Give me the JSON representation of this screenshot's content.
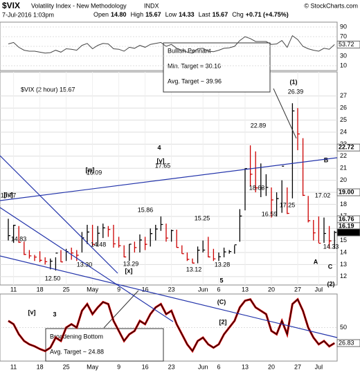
{
  "header": {
    "symbol": "$VIX",
    "name": "Volatility Index - New Methodology",
    "exchange": "INDX",
    "copyright": "© StockCharts.com",
    "datetime": "7-Jul-2016 1:03pm",
    "quote": [
      {
        "label": "Open",
        "value": "14.80"
      },
      {
        "label": "High",
        "value": "15.67"
      },
      {
        "label": "Low",
        "value": "14.33"
      },
      {
        "label": "Last",
        "value": "15.67"
      },
      {
        "label": "Chg",
        "value": "+0.71 (+4.75%)"
      }
    ]
  },
  "chart_data": [
    {
      "type": "ohlc",
      "legend": "$VIX (2 hour) 15.67",
      "categories": [
        null,
        "11",
        null,
        null,
        null,
        null,
        "18",
        null,
        null,
        null,
        null,
        "25",
        null,
        null,
        null,
        null,
        "May",
        null,
        null,
        null,
        null,
        "9",
        null,
        null,
        null,
        null,
        "16",
        null,
        null,
        null,
        null,
        "23",
        null,
        null,
        null,
        null,
        null,
        "Jun",
        null,
        null,
        "6",
        null,
        null,
        null,
        null,
        "13",
        null,
        null,
        null,
        null,
        "20",
        null,
        null,
        null,
        null,
        "27",
        null,
        null,
        null,
        "Jul",
        null,
        null,
        null
      ],
      "series": [
        {
          "name": "$VIX",
          "color": "#000000",
          "down_color": "#cc0000",
          "high": [
            16.8,
            16.3,
            16.2,
            14.9,
            14.2,
            13.8,
            14.1,
            13.6,
            13.5,
            13.6,
            14.2,
            14.3,
            14.4,
            14.2,
            15.7,
            16.3,
            16.3,
            16.2,
            16.4,
            16.2,
            16.3,
            15.3,
            14.6,
            14.7,
            14.9,
            15.5,
            15.3,
            16.0,
            16.3,
            17.0,
            16.4,
            15.9,
            15.9,
            14.6,
            14.0,
            13.5,
            14.5,
            15.0,
            15.3,
            14.3,
            14.0,
            14.4,
            14.2,
            14.6,
            17.6,
            21.0,
            22.9,
            22.4,
            21.4,
            20.5,
            19.4,
            19.0,
            20.0,
            19.4,
            26.4,
            26.0,
            23.5,
            18.7,
            16.7,
            17.0,
            16.9,
            16.2,
            15.8
          ],
          "low": [
            15.0,
            14.8,
            14.8,
            13.8,
            13.5,
            13.3,
            13.2,
            13.0,
            12.6,
            12.5,
            13.2,
            13.3,
            13.4,
            13.3,
            14.0,
            14.7,
            14.5,
            14.5,
            15.2,
            15.3,
            14.4,
            14.4,
            13.6,
            13.3,
            14.0,
            14.0,
            14.2,
            14.5,
            15.0,
            15.8,
            14.9,
            14.9,
            14.4,
            13.9,
            13.3,
            13.1,
            13.1,
            14.0,
            13.6,
            13.3,
            13.3,
            13.6,
            13.9,
            13.9,
            14.9,
            17.5,
            19.5,
            19.0,
            18.6,
            18.7,
            16.9,
            17.0,
            17.3,
            17.2,
            18.5,
            22.5,
            18.7,
            16.5,
            15.0,
            14.8,
            14.8,
            14.3,
            14.3
          ],
          "close": [
            15.4,
            16.26,
            14.85,
            13.84,
            13.72,
            13.62,
            13.35,
            13.24,
            13.28,
            13.95,
            13.22,
            14.08,
            13.96,
            13.77,
            15.22,
            15.7,
            14.68,
            15.6,
            16.05,
            15.91,
            14.72,
            14.57,
            13.63,
            14.69,
            14.41,
            15.04,
            14.68,
            15.57,
            15.95,
            16.33,
            15.2,
            15.82,
            14.42,
            13.9,
            13.43,
            13.12,
            14.19,
            14.2,
            13.63,
            13.47,
            13.65,
            14.05,
            14.08,
            14.64,
            17.03,
            20.97,
            20.5,
            19.37,
            19.37,
            19.41,
            18.37,
            18.48,
            21.17,
            17.25,
            25.76,
            23.85,
            18.75,
            16.64,
            15.63,
            14.77,
            15.58,
            14.96,
            15.67
          ]
        }
      ],
      "ylim": [
        11.3,
        29.0
      ],
      "yticks": [
        12,
        13,
        14,
        15,
        16,
        17,
        18,
        19,
        20,
        21,
        22,
        23,
        24,
        25,
        26,
        27
      ],
      "badges": [
        22.72,
        {
          "value": 19.0,
          "label": "19.00"
        },
        16.76,
        16.19,
        15.67
      ],
      "price_labels": [
        "16.77",
        "14.83",
        "12.50",
        "13.30",
        "14.48",
        "16.09",
        "15.86",
        "13.29",
        "17.65",
        "15.25",
        "13.12",
        "13.28",
        "22.89",
        "18.63",
        "26.39",
        "16.59",
        "17.25",
        "17.02",
        "14.33"
      ],
      "wave_labels": [
        "[iv]",
        "[w]",
        "[v]",
        "4",
        "[x]",
        "5",
        "(1)",
        "B",
        "A",
        "C",
        "(2)",
        "[v]",
        "3",
        "(C)",
        "[2]"
      ],
      "callouts": [
        {
          "lines": [
            "Bullish Pennant",
            "Min. Target = 30.16",
            "Avg. Target ~ 39.96"
          ]
        },
        {
          "lines": [
            "Broadening Bottom",
            "Avg. Target ~ 24.88"
          ]
        }
      ]
    },
    {
      "type": "line",
      "series": [
        {
          "name": "RSI",
          "color": "#444444",
          "values": [
            55,
            58,
            48,
            42,
            40,
            40,
            38,
            36,
            37,
            42,
            38,
            45,
            44,
            42,
            52,
            56,
            45,
            52,
            56,
            55,
            45,
            44,
            40,
            48,
            46,
            52,
            48,
            54,
            56,
            58,
            50,
            54,
            46,
            42,
            38,
            36,
            45,
            46,
            40,
            39,
            42,
            46,
            47,
            50,
            62,
            70,
            66,
            60,
            60,
            60,
            54,
            55,
            62,
            48,
            72,
            64,
            50,
            45,
            42,
            40,
            46,
            44,
            53.72
          ]
        }
      ],
      "ylim": [
        0,
        100
      ],
      "yticks": [
        10,
        30,
        50,
        70,
        90
      ]
    },
    {
      "type": "line",
      "series": [
        {
          "name": "Oscillator",
          "color": "#cc0000",
          "values": [
            60,
            55,
            40,
            30,
            25,
            22,
            18,
            15,
            20,
            35,
            30,
            50,
            55,
            50,
            75,
            85,
            70,
            80,
            88,
            85,
            60,
            45,
            30,
            40,
            45,
            60,
            55,
            70,
            80,
            85,
            70,
            75,
            55,
            40,
            25,
            15,
            30,
            35,
            25,
            20,
            25,
            40,
            50,
            60,
            80,
            90,
            92,
            80,
            75,
            70,
            45,
            40,
            60,
            40,
            85,
            92,
            75,
            50,
            35,
            25,
            30,
            22,
            26.83
          ]
        }
      ],
      "ylim": [
        0,
        100
      ],
      "yticks": [
        50
      ]
    }
  ]
}
